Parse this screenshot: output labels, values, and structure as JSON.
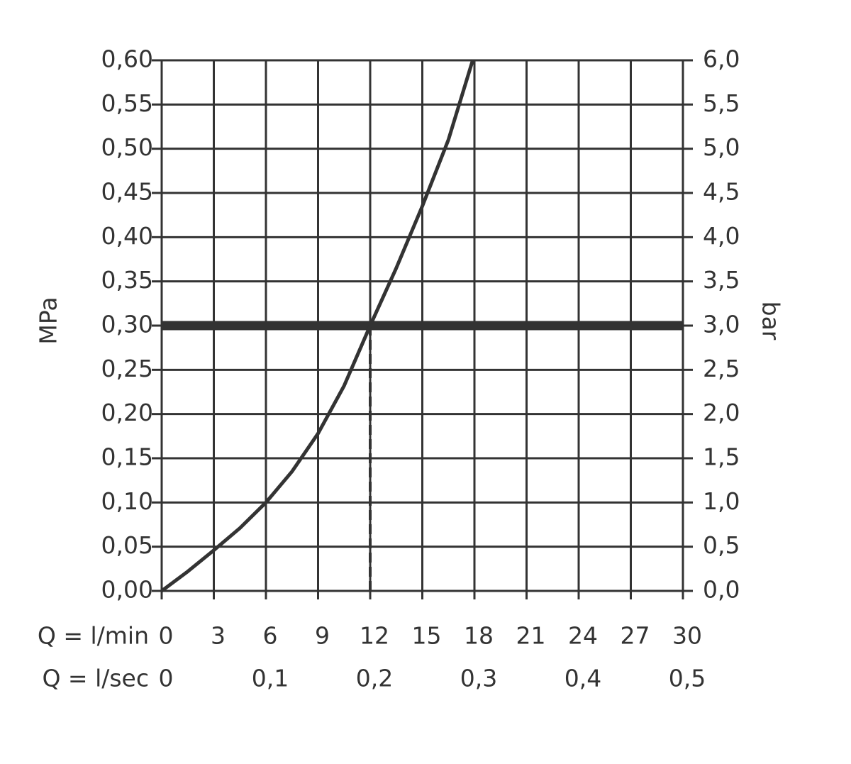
{
  "chart_data": {
    "type": "line",
    "ylabel": "MPa",
    "y2label": "bar",
    "xlabel": "Q = l/min",
    "x2label": "Q = l/sec",
    "x": [
      0,
      1.5,
      3,
      4.5,
      6,
      7.5,
      9,
      10.5,
      12,
      13.5,
      15,
      16.5,
      17.9
    ],
    "values": [
      0,
      0.022,
      0.046,
      0.071,
      0.1,
      0.135,
      0.178,
      0.232,
      0.3,
      0.365,
      0.435,
      0.51,
      0.6
    ],
    "color": "#333333",
    "xlim": [
      0,
      30
    ],
    "xticks": [
      0,
      3,
      6,
      9,
      12,
      15,
      18,
      21,
      24,
      27,
      30
    ],
    "x2lim": [
      0,
      0.5
    ],
    "x2ticks": [
      0,
      {
        "value": 0.1,
        "label": "0,1"
      },
      {
        "value": 0.2,
        "label": "0,2"
      },
      {
        "value": 0.3,
        "label": "0,3"
      },
      {
        "value": 0.4,
        "label": "0,4"
      },
      {
        "value": 0.5,
        "label": "0,5"
      }
    ],
    "ylim": [
      0,
      0.6
    ],
    "yticks": [
      {
        "value": 0,
        "label": "0,00"
      },
      {
        "value": 0.05,
        "label": "0,05"
      },
      {
        "value": 0.1,
        "label": "0,10"
      },
      {
        "value": 0.15,
        "label": "0,15"
      },
      {
        "value": 0.2,
        "label": "0,20"
      },
      {
        "value": 0.25,
        "label": "0,25"
      },
      {
        "value": 0.3,
        "label": "0,30"
      },
      {
        "value": 0.35,
        "label": "0,35"
      },
      {
        "value": 0.4,
        "label": "0,40"
      },
      {
        "value": 0.45,
        "label": "0,45"
      },
      {
        "value": 0.5,
        "label": "0,50"
      },
      {
        "value": 0.55,
        "label": "0,55"
      },
      {
        "value": 0.6,
        "label": "0,60"
      }
    ],
    "y2lim": [
      0,
      6
    ],
    "y2ticks": [
      {
        "value": 0,
        "label": "0,0"
      },
      {
        "value": 0.5,
        "label": "0,5"
      },
      {
        "value": 1,
        "label": "1,0"
      },
      {
        "value": 1.5,
        "label": "1,5"
      },
      {
        "value": 2,
        "label": "2,0"
      },
      {
        "value": 2.5,
        "label": "2,5"
      },
      {
        "value": 3,
        "label": "3,0"
      },
      {
        "value": 3.5,
        "label": "3,5"
      },
      {
        "value": 4,
        "label": "4,0"
      },
      {
        "value": 4.5,
        "label": "4,5"
      },
      {
        "value": 5,
        "label": "5,0"
      },
      {
        "value": 5.5,
        "label": "5,5"
      },
      {
        "value": 6,
        "label": "6,0"
      }
    ],
    "grid": true,
    "reference_line": {
      "x": 12,
      "y": 0.3
    }
  }
}
